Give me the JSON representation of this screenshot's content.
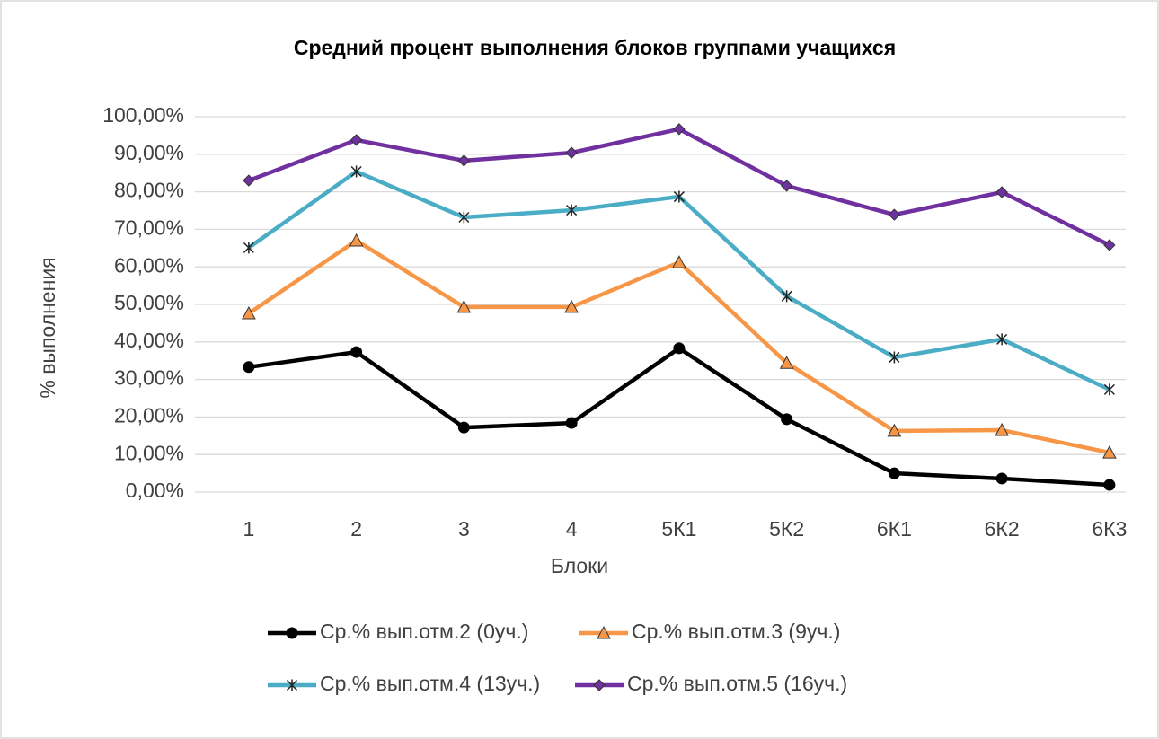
{
  "chart_data": {
    "type": "line",
    "title": "Средний процент выполнения блоков группами учащихся",
    "x_label": "Блоки",
    "y_label": "% выполнения",
    "categories": [
      "1",
      "2",
      "3",
      "4",
      "5К1",
      "5К2",
      "6К1",
      "6К2",
      "6К3"
    ],
    "series": [
      {
        "name": "Ср.% вып.отм.2 (0уч.)",
        "color": "#000000",
        "marker": "circle",
        "values": [
          33.3,
          37.3,
          17.2,
          18.4,
          38.3,
          19.4,
          5.0,
          3.6,
          1.9
        ]
      },
      {
        "name": "Ср.% вып.отм.3 (9уч.)",
        "color": "#f79646",
        "marker": "triangle",
        "values": [
          47.6,
          67.0,
          49.3,
          49.3,
          61.2,
          34.4,
          16.3,
          16.5,
          10.5
        ]
      },
      {
        "name": "Ср.% вып.отм.4 (13уч.)",
        "color": "#4bacc6",
        "marker": "asterisk",
        "values": [
          65.1,
          85.4,
          73.2,
          75.1,
          78.7,
          52.2,
          35.9,
          40.7,
          27.3
        ]
      },
      {
        "name": "Ср.% вып.отм.5 (16уч.)",
        "color": "#7030a0",
        "marker": "diamond",
        "values": [
          83.0,
          93.8,
          88.3,
          90.4,
          96.7,
          81.6,
          73.9,
          79.9,
          65.8
        ]
      }
    ],
    "ylim": [
      0,
      100
    ],
    "yticks": [
      {
        "value": 0,
        "label": "0,00%"
      },
      {
        "value": 10,
        "label": "10,00%"
      },
      {
        "value": 20,
        "label": "20,00%"
      },
      {
        "value": 30,
        "label": "30,00%"
      },
      {
        "value": 40,
        "label": "40,00%"
      },
      {
        "value": 50,
        "label": "50,00%"
      },
      {
        "value": 60,
        "label": "60,00%"
      },
      {
        "value": 70,
        "label": "70,00%"
      },
      {
        "value": 80,
        "label": "80,00%"
      },
      {
        "value": 90,
        "label": "90,00%"
      },
      {
        "value": 100,
        "label": "100,00%"
      }
    ],
    "grid": true,
    "legend": "bottom"
  }
}
